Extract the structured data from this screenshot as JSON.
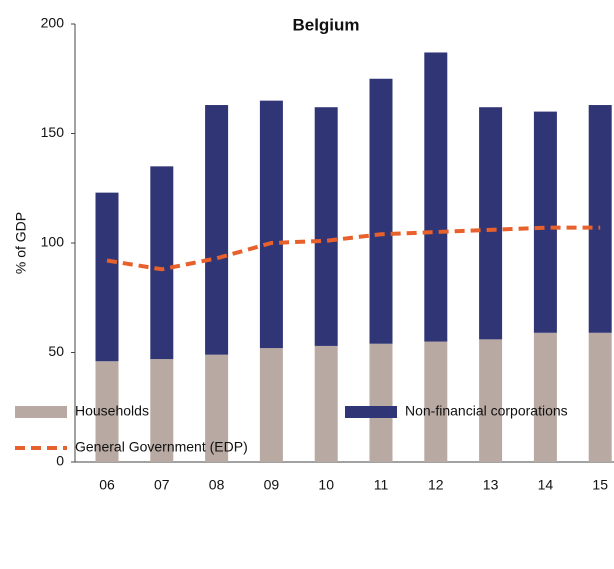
{
  "chart_data": {
    "type": "bar",
    "stacked": true,
    "title": "Belgium",
    "y_label": "% of GDP",
    "categories": [
      "06",
      "07",
      "08",
      "09",
      "10",
      "11",
      "12",
      "13",
      "14",
      "15"
    ],
    "series": [
      {
        "name": "Households",
        "color": "#b8aaa2",
        "values": [
          46,
          47,
          49,
          52,
          53,
          54,
          55,
          56,
          59,
          59
        ]
      },
      {
        "name": "Non-financial corporations",
        "color": "#303575",
        "values": [
          77,
          88,
          114,
          113,
          109,
          121,
          132,
          106,
          101,
          104
        ]
      },
      {
        "name": "General Government (EDP)",
        "type": "line",
        "color": "#e8602c",
        "values": [
          92,
          88,
          93,
          100,
          101,
          104,
          105,
          106,
          107,
          107
        ]
      }
    ],
    "ylim": [
      0,
      200
    ],
    "yticks": [
      0,
      50,
      100,
      150,
      200
    ]
  }
}
